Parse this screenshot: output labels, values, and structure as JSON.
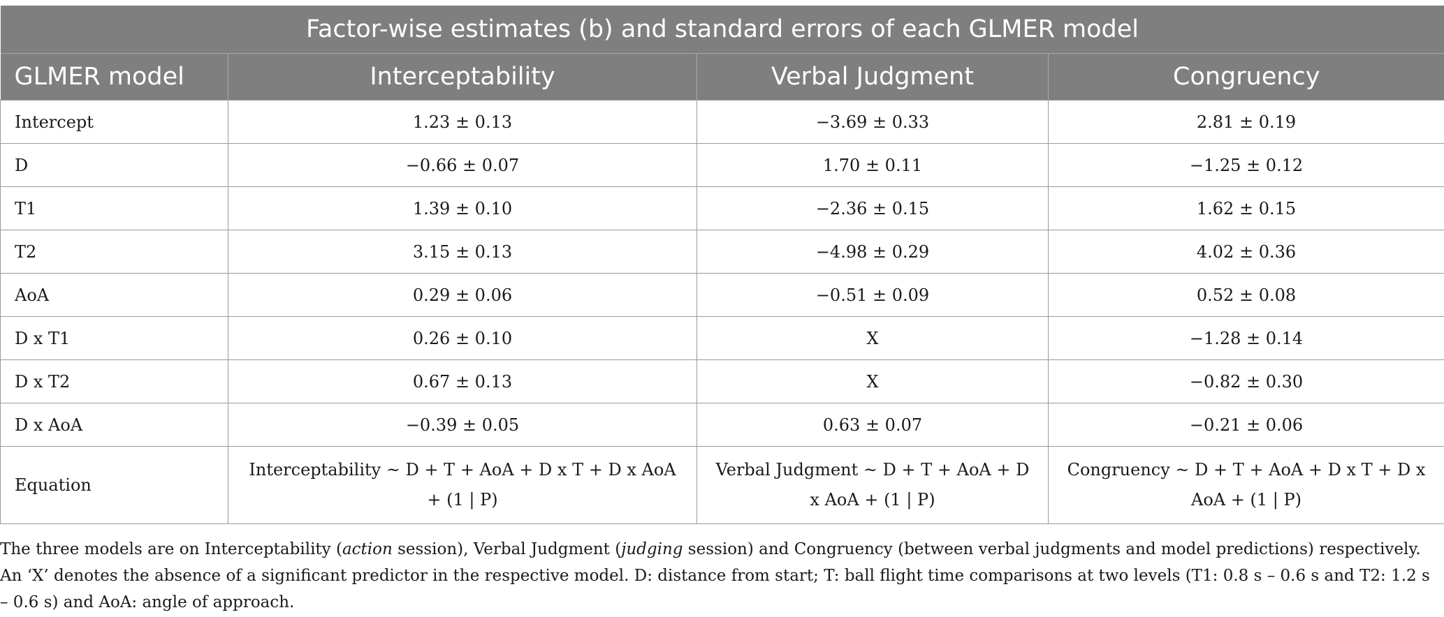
{
  "table": {
    "title": "Factor-wise estimates (b) and standard errors of each GLMER model",
    "headers": [
      "GLMER model",
      "Interceptability",
      "Verbal Judgment",
      "Congruency"
    ],
    "rows": [
      [
        "Intercept",
        "1.23 ± 0.13",
        "−3.69 ± 0.33",
        "2.81 ± 0.19"
      ],
      [
        "D",
        "−0.66 ± 0.07",
        "1.70 ± 0.11",
        "−1.25 ± 0.12"
      ],
      [
        "T1",
        "1.39 ± 0.10",
        "−2.36 ± 0.15",
        "1.62 ± 0.15"
      ],
      [
        "T2",
        "3.15 ± 0.13",
        "−4.98 ± 0.29",
        "4.02 ± 0.36"
      ],
      [
        "AoA",
        "0.29 ± 0.06",
        "−0.51 ± 0.09",
        "0.52 ± 0.08"
      ],
      [
        "D x T1",
        "0.26 ± 0.10",
        "X",
        "−1.28 ± 0.14"
      ],
      [
        "D x T2",
        "0.67 ± 0.13",
        "X",
        "−0.82 ± 0.30"
      ],
      [
        "D x AoA",
        "−0.39 ± 0.05",
        "0.63 ± 0.07",
        "−0.21 ± 0.06"
      ],
      [
        "Equation",
        "Interceptability ~ D + T + AoA + D x T + D x AoA + (1 | P)",
        "Verbal Judgment ~ D + T + AoA + D x AoA + (1 | P)",
        "Congruency ~ D + T + AoA + D x T + D x AoA + (1 | P)"
      ]
    ]
  },
  "footnote": {
    "part1": "The three models are on Interceptability (",
    "action": "action",
    "part2": " session), Verbal Judgment (",
    "judging": "judging",
    "part3": " session) and Congruency (between verbal judgments and model predictions) respectively. An ‘X’ denotes the absence of a significant predictor in the respective model. D: distance from start; T: ball flight time comparisons at two levels (T1: 0.8 s – 0.6 s and T2: 1.2 s – 0.6 s) and AoA: angle of approach."
  }
}
